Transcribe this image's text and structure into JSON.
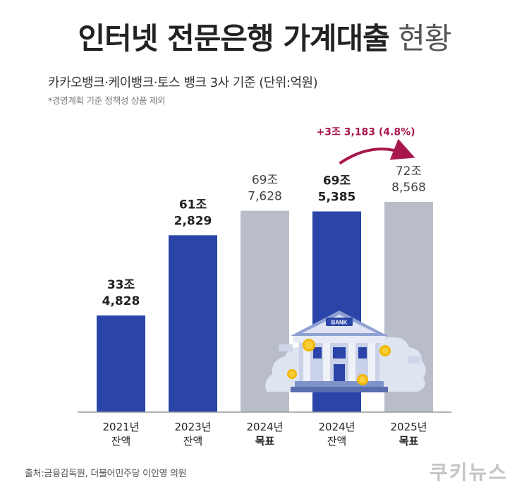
{
  "header": {
    "title_bold": "인터넷 전문은행 가계대출",
    "title_light": "현황",
    "subtitle": "카카오뱅크·케이뱅크·토스 뱅크 3사 기준 (단위:억원)",
    "note": "*경영계획 기준 정책성 상품 제외"
  },
  "chart_data": {
    "type": "bar",
    "categories": [
      "2021년 잔액",
      "2023년 잔액",
      "2024년 목표",
      "2024년 잔액",
      "2025년 목표"
    ],
    "values": [
      334828,
      612829,
      697628,
      695385,
      728568
    ],
    "value_labels": [
      [
        "33조",
        "4,828"
      ],
      [
        "61조",
        "2,829"
      ],
      [
        "69조",
        "7,628"
      ],
      [
        "69조",
        "5,385"
      ],
      [
        "72조",
        "8,568"
      ]
    ],
    "category_labels": [
      [
        "2021년",
        "잔액"
      ],
      [
        "2023년",
        "잔액"
      ],
      [
        "2024년",
        "목표"
      ],
      [
        "2024년",
        "잔액"
      ],
      [
        "2025년",
        "목표"
      ]
    ],
    "bar_kind": [
      "actual",
      "actual",
      "target",
      "actual",
      "target"
    ],
    "colors": {
      "actual": "#2a44a8",
      "target": "#b9bdc9",
      "annotation": "#a8174e",
      "baseline": "#999999"
    },
    "annotation": {
      "text": "+3조 3,183 (4.8%)",
      "from_index": 3,
      "to_index": 4
    },
    "illustration": {
      "label": "BANK"
    }
  },
  "footer": {
    "source": "출처:금융감독원, 더불어민주당 이인영 의원",
    "brand": "쿠키뉴스"
  }
}
